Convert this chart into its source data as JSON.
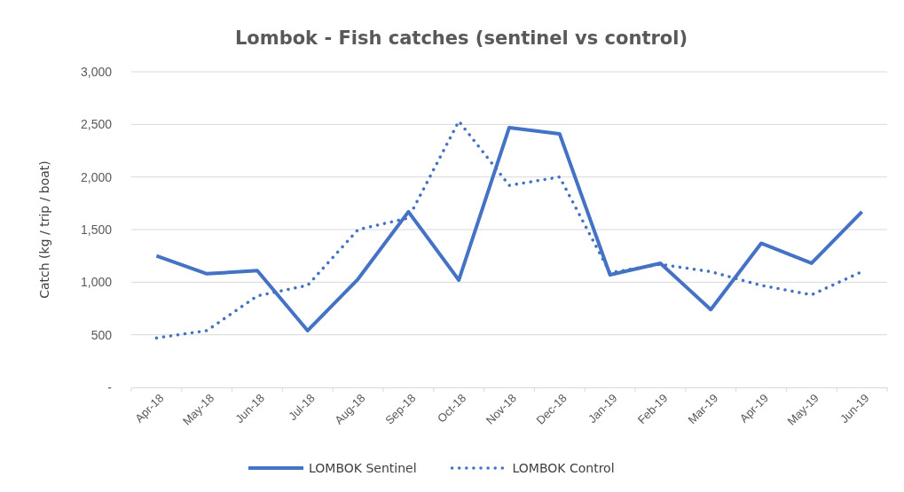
{
  "chart_data": {
    "type": "line",
    "title": "Lombok - Fish catches (sentinel vs control)",
    "ylabel": "Catch (kg / trip / boat)",
    "categories": [
      "Apr-18",
      "May-18",
      "Jun-18",
      "Jul-18",
      "Aug-18",
      "Sep-18",
      "Oct-18",
      "Nov-18",
      "Dec-18",
      "Jan-19",
      "Feb-19",
      "Mar-19",
      "Apr-19",
      "May-19",
      "Jun-19"
    ],
    "series": [
      {
        "name": "LOMBOK Sentinel",
        "color": "#4472c4",
        "line_style": "solid",
        "values": [
          1250,
          1080,
          1110,
          540,
          1030,
          1670,
          1020,
          2470,
          2410,
          1070,
          1180,
          740,
          1370,
          1180,
          1670
        ]
      },
      {
        "name": "LOMBOK Control",
        "color": "#4472c4",
        "line_style": "dotted",
        "values": [
          470,
          540,
          870,
          970,
          1500,
          1610,
          2530,
          1920,
          2000,
          1090,
          1170,
          1100,
          970,
          880,
          1100
        ]
      }
    ],
    "ylim": [
      0,
      3000
    ],
    "yticks": [
      {
        "value": 0,
        "label": "-"
      },
      500,
      {
        "value": 1000,
        "label": "1,000"
      },
      {
        "value": 1500,
        "label": "1,500"
      },
      {
        "value": 2000,
        "label": "2,000"
      },
      {
        "value": 2500,
        "label": "2,500"
      },
      {
        "value": 3000,
        "label": "3,000"
      }
    ],
    "grid": "y",
    "legend": "bottom",
    "marker": "none"
  }
}
